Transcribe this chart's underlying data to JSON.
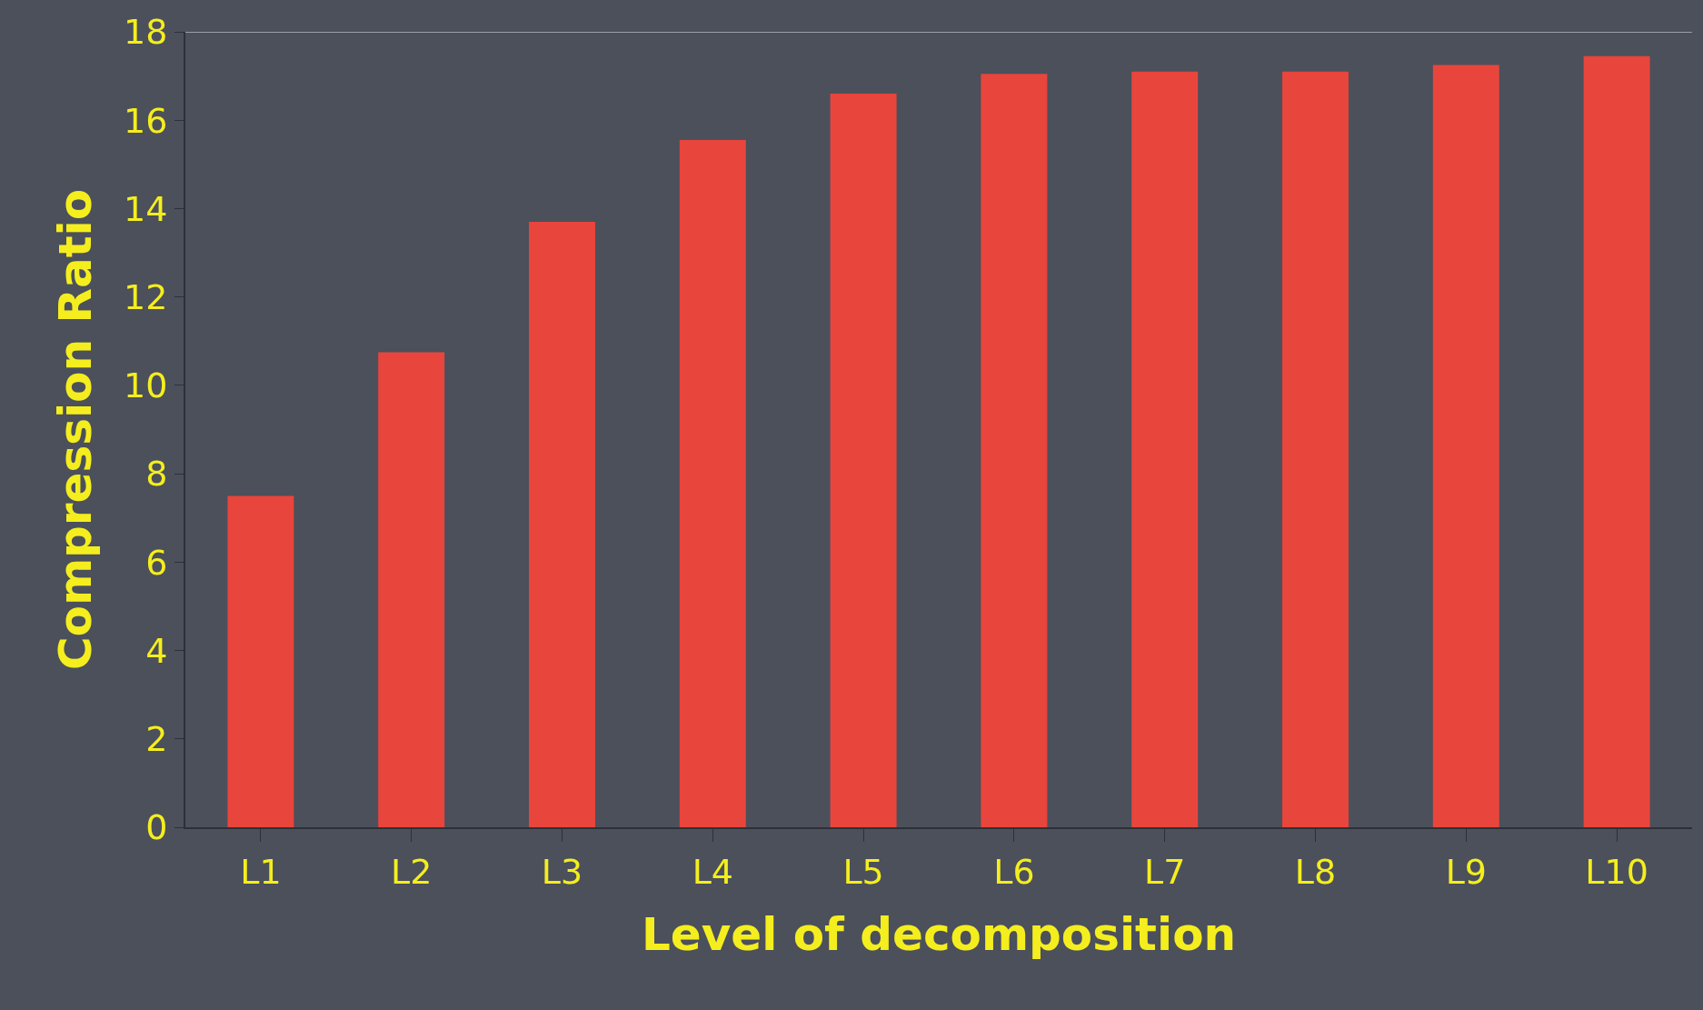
{
  "chart_data": {
    "type": "bar",
    "xlabel": "Level of decomposition",
    "ylabel": "Compression Ratio",
    "categories": [
      "L1",
      "L2",
      "L3",
      "L4",
      "L5",
      "L6",
      "L7",
      "L8",
      "L9",
      "L10"
    ],
    "values": [
      7.5,
      10.75,
      13.7,
      15.55,
      16.6,
      17.05,
      17.1,
      17.1,
      17.25,
      17.45
    ],
    "color": "#e8453c",
    "ylim": [
      0,
      18
    ],
    "yticks": [
      0,
      2,
      4,
      6,
      8,
      10,
      12,
      14,
      16,
      18
    ],
    "grid": false
  }
}
